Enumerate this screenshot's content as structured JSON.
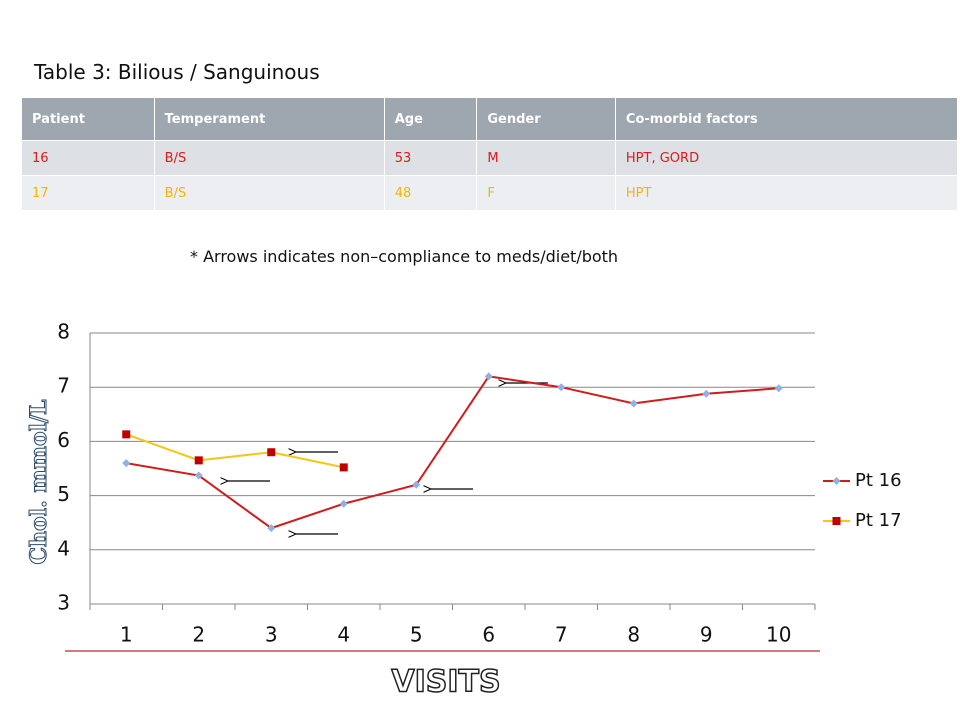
{
  "title": "Table 3: Bilious / Sanguinous",
  "table": {
    "header": [
      "Patient",
      "Temperament",
      "Age",
      "Gender",
      "Co-morbid factors"
    ],
    "rows": [
      [
        "16",
        "B/S",
        "53",
        "M",
        "HPT, GORD"
      ],
      [
        "17",
        "B/S",
        "48",
        "F",
        "HPT"
      ]
    ],
    "row_colors": [
      "#e0191b",
      "#f2b705"
    ]
  },
  "note": "* Arrows indicates non–compliance to meds/diet/both",
  "chart_data": {
    "type": "line",
    "y_label": "Chol. mmol/L",
    "x_label": "VISITS",
    "categories": [
      1,
      2,
      3,
      4,
      5,
      6,
      7,
      8,
      9,
      10
    ],
    "series": [
      {
        "name": "Pt 16",
        "color": "#d01c1c",
        "marker": "diamond",
        "marker_color": "#8fb1e3",
        "values": [
          5.6,
          5.37,
          4.4,
          4.85,
          5.2,
          7.2,
          7.0,
          6.7,
          6.88,
          6.98
        ]
      },
      {
        "name": "Pt 17",
        "color": "#f5c518",
        "marker": "square",
        "marker_color": "#c00000",
        "values": [
          6.13,
          5.65,
          5.8,
          5.52,
          null,
          null,
          null,
          null,
          null,
          null
        ]
      }
    ],
    "ylim": [
      3,
      8
    ],
    "yticks": [
      3,
      4,
      5,
      6,
      7,
      8
    ],
    "grid": true,
    "legend": "right"
  }
}
